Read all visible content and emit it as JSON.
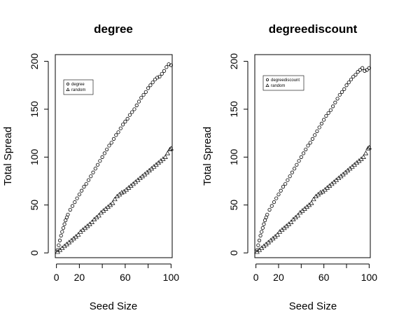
{
  "chart_data": [
    {
      "type": "scatter",
      "title": "degree",
      "xlabel": "Seed Size",
      "ylabel": "Total Spread",
      "xlim": [
        -1,
        101
      ],
      "ylim": [
        -5,
        207
      ],
      "xticks": [
        0,
        20,
        60,
        100
      ],
      "yticks": [
        0,
        50,
        100,
        150,
        200
      ],
      "legend": {
        "position": "top-left",
        "entries": [
          "degree",
          "random"
        ]
      },
      "series": [
        {
          "name": "degree",
          "marker": "circle",
          "x": [
            1,
            2,
            3,
            4,
            5,
            6,
            7,
            8,
            9,
            10,
            12,
            14,
            16,
            18,
            20,
            22,
            24,
            26,
            28,
            30,
            32,
            34,
            36,
            38,
            40,
            42,
            44,
            46,
            48,
            50,
            52,
            54,
            56,
            58,
            60,
            62,
            64,
            66,
            68,
            70,
            72,
            74,
            76,
            78,
            80,
            82,
            84,
            86,
            88,
            90,
            92,
            94,
            96,
            98,
            100
          ],
          "y": [
            3,
            8,
            13,
            18,
            22,
            26,
            30,
            34,
            37,
            40,
            45,
            49,
            53,
            57,
            61,
            65,
            69,
            72,
            76,
            80,
            84,
            88,
            92,
            96,
            100,
            104,
            108,
            112,
            115,
            119,
            123,
            126,
            130,
            134,
            137,
            140,
            144,
            147,
            150,
            154,
            158,
            162,
            165,
            168,
            172,
            175,
            178,
            181,
            183,
            184,
            187,
            190,
            194,
            197,
            196
          ]
        },
        {
          "name": "random",
          "marker": "triangle",
          "x": [
            1,
            3,
            5,
            7,
            9,
            11,
            13,
            15,
            17,
            19,
            21,
            23,
            25,
            27,
            29,
            31,
            33,
            35,
            37,
            39,
            41,
            43,
            45,
            47,
            49,
            51,
            53,
            55,
            57,
            59,
            61,
            63,
            65,
            67,
            69,
            71,
            73,
            75,
            77,
            79,
            81,
            83,
            85,
            87,
            89,
            91,
            93,
            95,
            97,
            99,
            100
          ],
          "y": [
            1,
            3,
            5,
            7,
            9,
            11,
            13,
            15,
            17,
            19,
            22,
            24,
            26,
            28,
            30,
            32,
            35,
            37,
            39,
            42,
            44,
            46,
            48,
            50,
            52,
            56,
            59,
            61,
            63,
            64,
            66,
            68,
            70,
            72,
            74,
            76,
            78,
            80,
            82,
            84,
            86,
            88,
            90,
            92,
            94,
            96,
            98,
            100,
            104,
            108,
            109
          ]
        }
      ]
    },
    {
      "type": "scatter",
      "title": "degreediscount",
      "xlabel": "Seed Size",
      "ylabel": "Total Spread",
      "xlim": [
        -1,
        101
      ],
      "ylim": [
        -5,
        207
      ],
      "xticks": [
        0,
        20,
        60,
        100
      ],
      "yticks": [
        0,
        50,
        100,
        150,
        200
      ],
      "legend": {
        "position": "top-left",
        "entries": [
          "degreediscount",
          "random"
        ]
      },
      "series": [
        {
          "name": "degreediscount",
          "marker": "circle",
          "x": [
            1,
            2,
            3,
            4,
            5,
            6,
            7,
            8,
            9,
            10,
            12,
            14,
            16,
            18,
            20,
            22,
            24,
            26,
            28,
            30,
            32,
            34,
            36,
            38,
            40,
            42,
            44,
            46,
            48,
            50,
            52,
            54,
            56,
            58,
            60,
            62,
            64,
            66,
            68,
            70,
            72,
            74,
            76,
            78,
            80,
            82,
            84,
            86,
            88,
            90,
            92,
            94,
            96,
            98,
            100
          ],
          "y": [
            3,
            8,
            13,
            18,
            22,
            26,
            30,
            34,
            37,
            40,
            45,
            49,
            53,
            57,
            61,
            65,
            69,
            72,
            76,
            80,
            84,
            88,
            92,
            96,
            100,
            104,
            108,
            112,
            115,
            119,
            123,
            127,
            131,
            135,
            139,
            143,
            146,
            149,
            153,
            157,
            161,
            165,
            168,
            171,
            175,
            178,
            181,
            184,
            186,
            189,
            191,
            193,
            190,
            191,
            193
          ]
        },
        {
          "name": "random",
          "marker": "triangle",
          "x": [
            1,
            3,
            5,
            7,
            9,
            11,
            13,
            15,
            17,
            19,
            21,
            23,
            25,
            27,
            29,
            31,
            33,
            35,
            37,
            39,
            41,
            43,
            45,
            47,
            49,
            51,
            53,
            55,
            57,
            59,
            61,
            63,
            65,
            67,
            69,
            71,
            73,
            75,
            77,
            79,
            81,
            83,
            85,
            87,
            89,
            91,
            93,
            95,
            97,
            99,
            100
          ],
          "y": [
            1,
            3,
            5,
            7,
            9,
            11,
            13,
            15,
            17,
            19,
            22,
            24,
            26,
            28,
            30,
            32,
            35,
            37,
            39,
            42,
            44,
            46,
            48,
            50,
            52,
            56,
            59,
            61,
            63,
            64,
            66,
            68,
            70,
            72,
            74,
            76,
            78,
            80,
            82,
            84,
            86,
            88,
            90,
            92,
            94,
            96,
            98,
            100,
            104,
            109,
            110
          ]
        }
      ]
    }
  ]
}
